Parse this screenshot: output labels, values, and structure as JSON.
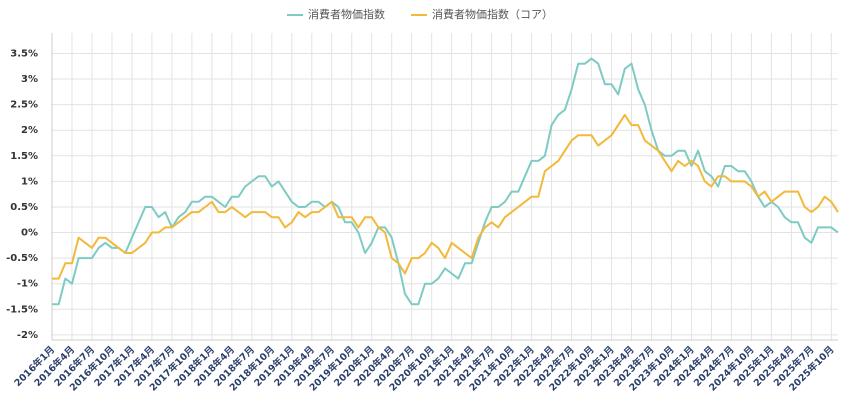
{
  "chart_data": {
    "type": "line",
    "categories": [
      "2016年1月",
      null,
      null,
      "2016年4月",
      null,
      null,
      "2016年7月",
      null,
      null,
      "2016年10月",
      null,
      null,
      "2017年1月",
      null,
      null,
      "2017年4月",
      null,
      null,
      "2017年7月",
      null,
      null,
      "2017年10月",
      null,
      null,
      "2018年1月",
      null,
      null,
      "2018年4月",
      null,
      null,
      "2018年7月",
      null,
      null,
      "2018年10月",
      null,
      null,
      "2019年1月",
      null,
      null,
      "2019年4月",
      null,
      null,
      "2019年7月",
      null,
      null,
      "2019年10月",
      null,
      null,
      "2020年1月",
      null,
      null,
      "2020年4月",
      null,
      null,
      "2020年7月",
      null,
      null,
      "2020年10月",
      null,
      null,
      "2021年1月",
      null,
      null,
      "2021年4月",
      null,
      null,
      "2021年7月",
      null,
      null,
      "2021年10月",
      null,
      null,
      "2022年1月",
      null,
      null,
      "2022年4月",
      null,
      null,
      "2022年7月",
      null,
      null,
      "2022年10月",
      null,
      null,
      "2023年1月",
      null,
      null,
      "2023年4月",
      null,
      null,
      "2023年7月",
      null,
      null,
      "2023年10月",
      null,
      null,
      "2024年1月",
      null,
      null,
      "2024年4月",
      null,
      null,
      "2024年7月",
      null,
      null,
      "2024年10月",
      null,
      null,
      "2025年1月",
      null,
      null,
      "2025年4月",
      null,
      null,
      "2025年7月",
      null,
      null,
      "2025年10月",
      null
    ],
    "series": [
      {
        "name": "消費者物価指数",
        "color": "#7ecbc4",
        "values": [
          -1.4,
          -1.4,
          -0.9,
          -1.0,
          -0.5,
          -0.5,
          -0.5,
          -0.3,
          -0.2,
          -0.3,
          -0.3,
          -0.4,
          -0.1,
          0.2,
          0.5,
          0.5,
          0.3,
          0.4,
          0.1,
          0.3,
          0.4,
          0.6,
          0.6,
          0.7,
          0.7,
          0.6,
          0.5,
          0.7,
          0.7,
          0.9,
          1.0,
          1.1,
          1.1,
          0.9,
          1.0,
          0.8,
          0.6,
          0.5,
          0.5,
          0.6,
          0.6,
          0.5,
          0.6,
          0.5,
          0.2,
          0.2,
          0.0,
          -0.4,
          -0.2,
          0.1,
          0.1,
          -0.1,
          -0.6,
          -1.2,
          -1.4,
          -1.4,
          -1.0,
          -1.0,
          -0.9,
          -0.7,
          -0.8,
          -0.9,
          -0.6,
          -0.6,
          -0.2,
          0.2,
          0.5,
          0.5,
          0.6,
          0.8,
          0.8,
          1.1,
          1.4,
          1.4,
          1.5,
          2.1,
          2.3,
          2.4,
          2.8,
          3.3,
          3.3,
          3.4,
          3.3,
          2.9,
          2.9,
          2.7,
          3.2,
          3.3,
          2.8,
          2.5,
          2.0,
          1.6,
          1.5,
          1.5,
          1.6,
          1.6,
          1.3,
          1.6,
          1.2,
          1.1,
          0.9,
          1.3,
          1.3,
          1.2,
          1.2,
          1.0,
          0.7,
          0.5,
          0.6,
          0.5,
          0.3,
          0.2,
          0.2,
          -0.1,
          -0.2,
          0.1,
          0.1,
          0.1,
          0.0
        ]
      },
      {
        "name": "消費者物価指数（コア）",
        "color": "#f2b93b",
        "values": [
          -0.9,
          -0.9,
          -0.6,
          -0.6,
          -0.1,
          -0.2,
          -0.3,
          -0.1,
          -0.1,
          -0.2,
          -0.3,
          -0.4,
          -0.4,
          -0.3,
          -0.2,
          0.0,
          0.0,
          0.1,
          0.1,
          0.2,
          0.3,
          0.4,
          0.4,
          0.5,
          0.6,
          0.4,
          0.4,
          0.5,
          0.4,
          0.3,
          0.4,
          0.4,
          0.4,
          0.3,
          0.3,
          0.1,
          0.2,
          0.4,
          0.3,
          0.4,
          0.4,
          0.5,
          0.6,
          0.3,
          0.3,
          0.3,
          0.1,
          0.3,
          0.3,
          0.1,
          0.0,
          -0.5,
          -0.6,
          -0.8,
          -0.5,
          -0.5,
          -0.4,
          -0.2,
          -0.3,
          -0.5,
          -0.2,
          -0.3,
          -0.4,
          -0.5,
          -0.1,
          0.1,
          0.2,
          0.1,
          0.3,
          0.4,
          0.5,
          0.6,
          0.7,
          0.7,
          1.2,
          1.3,
          1.4,
          1.6,
          1.8,
          1.9,
          1.9,
          1.9,
          1.7,
          1.8,
          1.9,
          2.1,
          2.3,
          2.1,
          2.1,
          1.8,
          1.7,
          1.6,
          1.4,
          1.2,
          1.4,
          1.3,
          1.4,
          1.3,
          1.0,
          0.9,
          1.1,
          1.1,
          1.0,
          1.0,
          1.0,
          0.9,
          0.7,
          0.8,
          0.6,
          0.7,
          0.8,
          0.8,
          0.8,
          0.5,
          0.4,
          0.5,
          0.7,
          0.6,
          0.4
        ]
      }
    ],
    "ylim": [
      -2.1,
      3.9
    ],
    "yticks": [
      {
        "value": -2,
        "label": "-2%"
      },
      {
        "value": -1.5,
        "label": "-1.5%"
      },
      {
        "value": -1,
        "label": "-1%"
      },
      {
        "value": -0.5,
        "label": "-0.5%"
      },
      {
        "value": 0,
        "label": "0%"
      },
      {
        "value": 0.5,
        "label": "0.5%"
      },
      {
        "value": 1,
        "label": "1%"
      },
      {
        "value": 1.5,
        "label": "1.5%"
      },
      {
        "value": 2,
        "label": "2%"
      },
      {
        "value": 2.5,
        "label": "2.5%"
      },
      {
        "value": 3,
        "label": "3%"
      },
      {
        "value": 3.5,
        "label": "3.5%"
      }
    ],
    "grid": true,
    "legend": "top"
  }
}
